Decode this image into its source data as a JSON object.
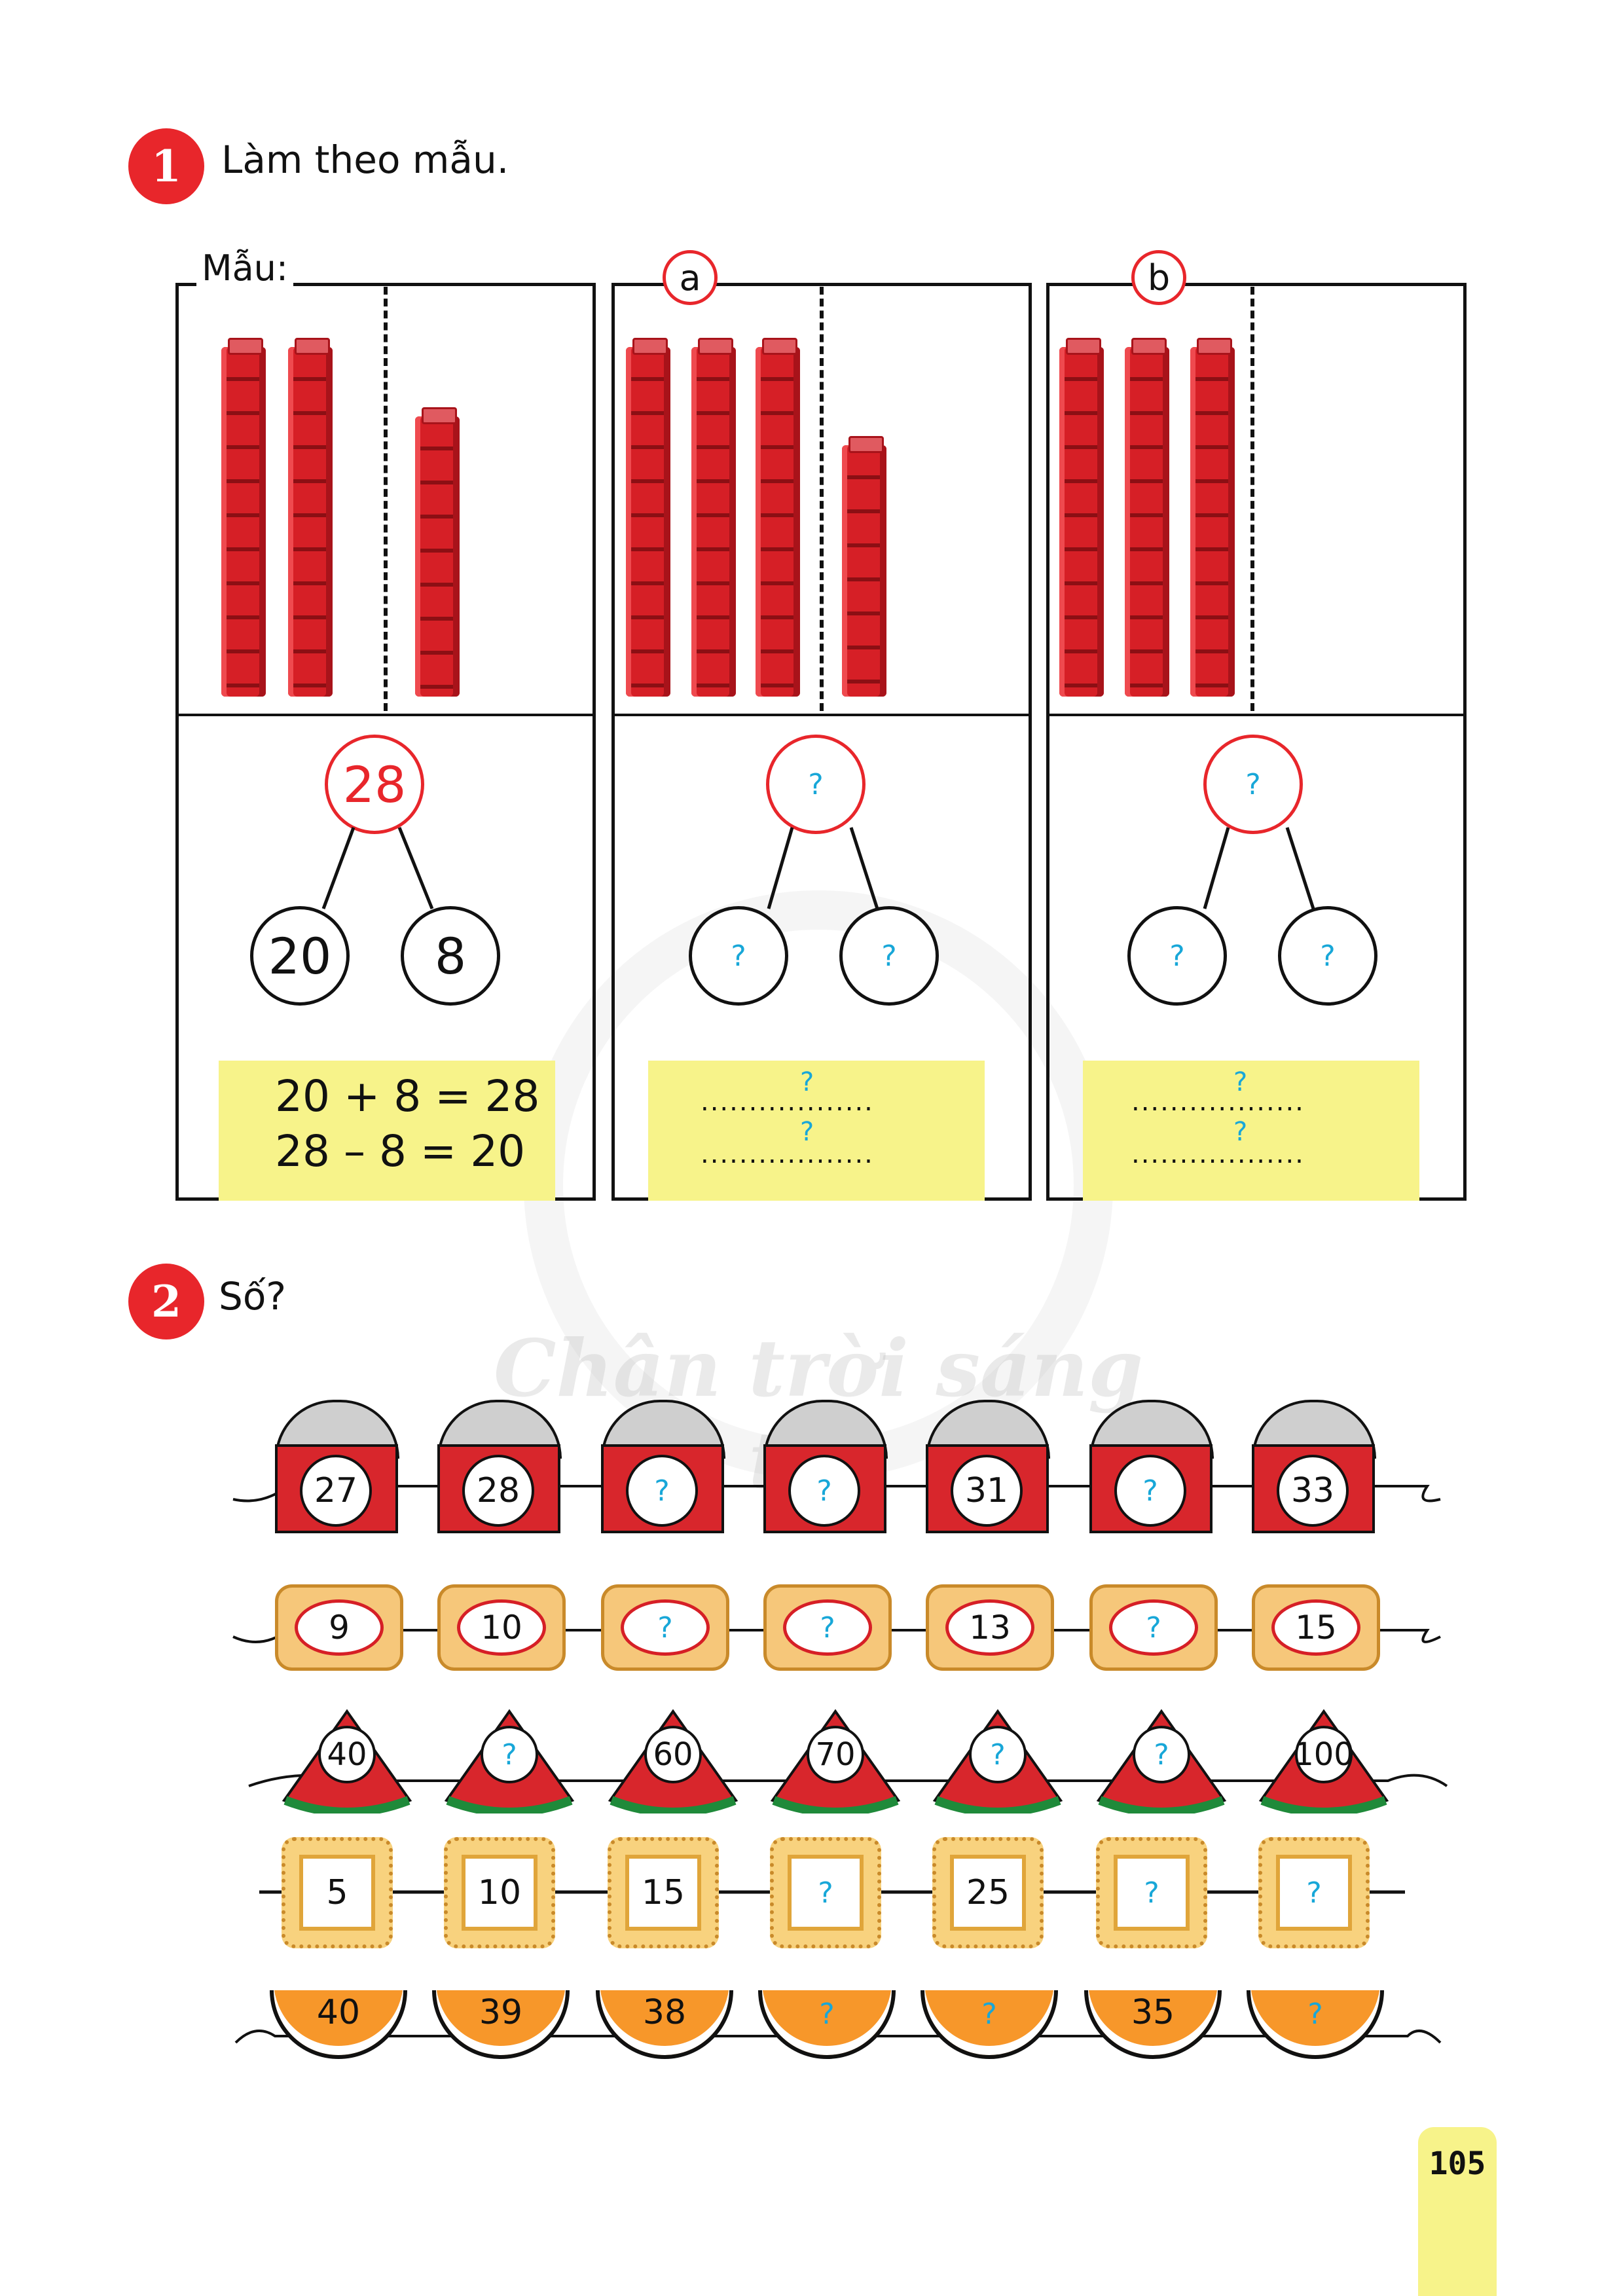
{
  "task1": {
    "number": "1",
    "instruction": "Làm theo mẫu."
  },
  "task2": {
    "number": "2",
    "instruction": "Số?"
  },
  "panels": {
    "sample": {
      "label": "Mẫu:",
      "total": "28",
      "tens": "20",
      "ones": "8",
      "eq1": "20 + 8 = 28",
      "eq2": "28 – 8 = 20"
    },
    "a": {
      "label": "a",
      "total": "?",
      "tens": "?",
      "ones": "?",
      "dots": "..................",
      "q": "?"
    },
    "b": {
      "label": "b",
      "total": "?",
      "tens": "?",
      "ones": "?",
      "dots": "..................",
      "q": "?"
    }
  },
  "rows": {
    "buckets": [
      "27",
      "28",
      "?",
      "?",
      "31",
      "?",
      "33"
    ],
    "biscuits": [
      "9",
      "10",
      "?",
      "?",
      "13",
      "?",
      "15"
    ],
    "melons": [
      "40",
      "?",
      "60",
      "70",
      "?",
      "?",
      "100"
    ],
    "crackers": [
      "5",
      "10",
      "15",
      "?",
      "25",
      "?",
      "?"
    ],
    "oranges": [
      "40",
      "39",
      "38",
      "?",
      "?",
      "35",
      "?"
    ]
  },
  "watermark": "Chân trời sáng tạo",
  "page_number": "105",
  "colors": {
    "red": "#e8262b",
    "blue_question": "#18a7d8",
    "yellow": "#f7f38a"
  }
}
